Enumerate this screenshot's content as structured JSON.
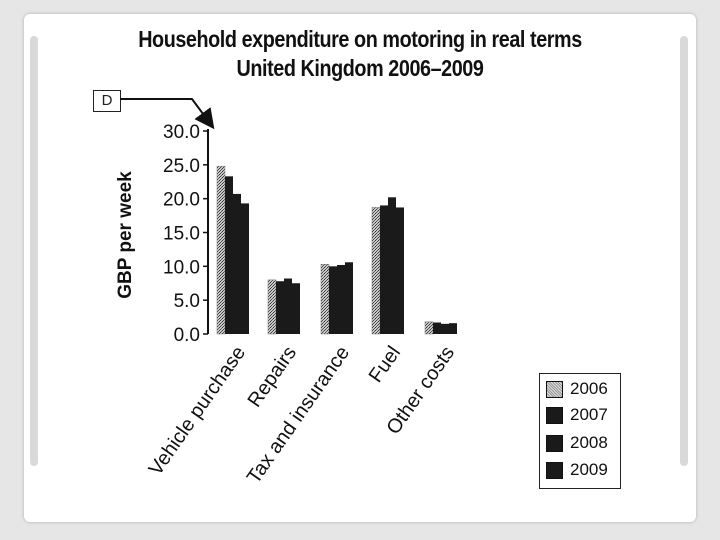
{
  "page": {
    "background_color": "#e6e6e6",
    "frame_color": "#ffffff"
  },
  "annotation": {
    "box_label": "D"
  },
  "chart_data": {
    "type": "bar",
    "title": "Household expenditure on motoring in real terms",
    "subtitle": "United Kingdom 2006–2009",
    "ylabel": "GBP per week",
    "xlabel": "",
    "ylim": [
      0,
      30
    ],
    "yticks": [
      "0.0",
      "5.0",
      "10.0",
      "15.0",
      "20.0",
      "25.0",
      "30.0"
    ],
    "grid": false,
    "legend_position": "bottom-right",
    "categories": [
      "Vehicle purchase",
      "Repairs",
      "Tax and insurance",
      "Fuel",
      "Other costs"
    ],
    "series": [
      {
        "name": "2006",
        "color": "#9a9a9a",
        "pattern": "stipple",
        "values": [
          24.8,
          8.0,
          10.3,
          18.7,
          1.8
        ]
      },
      {
        "name": "2007",
        "color": "#1a1a1a",
        "pattern": "solid",
        "values": [
          23.3,
          7.8,
          10.0,
          19.0,
          1.7
        ]
      },
      {
        "name": "2008",
        "color": "#1a1a1a",
        "pattern": "solid",
        "values": [
          20.7,
          8.2,
          10.2,
          20.2,
          1.5
        ]
      },
      {
        "name": "2009",
        "color": "#1a1a1a",
        "pattern": "solid",
        "values": [
          19.3,
          7.5,
          10.6,
          18.7,
          1.6
        ]
      }
    ]
  }
}
